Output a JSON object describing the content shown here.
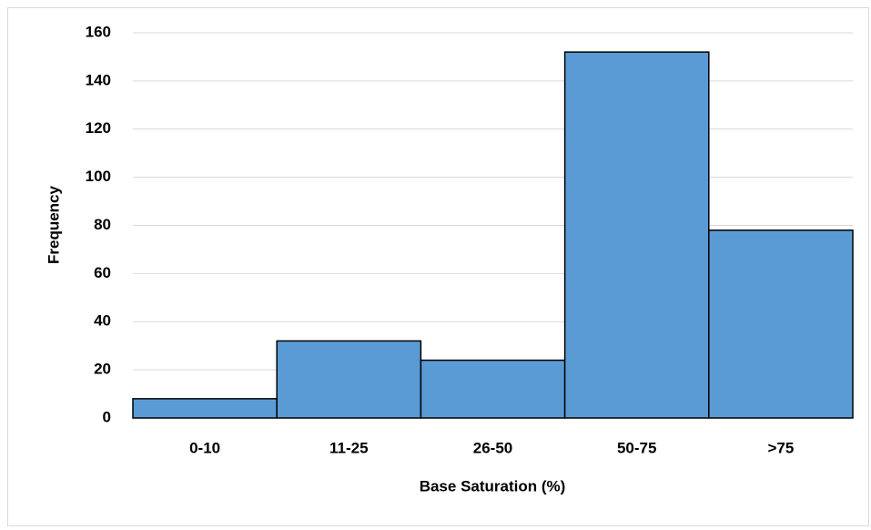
{
  "chart_data": {
    "type": "bar",
    "x_label": "Base Saturation (%)",
    "y_label": "Frequency",
    "categories": [
      "0-10",
      "11-25",
      "26-50",
      "50-75",
      ">75"
    ],
    "values": [
      8,
      32,
      24,
      152,
      78
    ],
    "color": "#5b9bd5",
    "ylim": [
      0,
      160
    ],
    "yticks": [
      0,
      20,
      40,
      60,
      80,
      100,
      120,
      140,
      160
    ],
    "grid": true
  }
}
